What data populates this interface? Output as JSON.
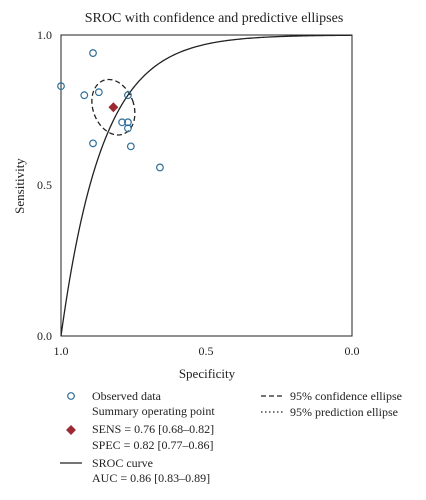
{
  "chart_data": {
    "type": "scatter",
    "title": "SROC with confidence and predictive ellipses",
    "xlabel": "Specificity",
    "ylabel": "Sensitivity",
    "xlim": [
      1.0,
      0.0
    ],
    "ylim": [
      0.0,
      1.0
    ],
    "x_reversed": true,
    "xticks": [
      "1.0",
      "0.5",
      "0.0"
    ],
    "yticks": [
      "0.0",
      "0.5",
      "1.0"
    ],
    "observed": {
      "specificity": [
        1.0,
        0.92,
        0.89,
        0.89,
        0.87,
        0.77,
        0.79,
        0.77,
        0.77,
        0.76,
        0.66
      ],
      "sensitivity": [
        0.83,
        0.8,
        0.94,
        0.64,
        0.81,
        0.8,
        0.71,
        0.71,
        0.69,
        0.63,
        0.56
      ]
    },
    "summary": {
      "specificity": 0.82,
      "sensitivity": 0.76
    },
    "confidence_ellipse": {
      "center": [
        0.82,
        0.76
      ],
      "semi_spec": 0.07,
      "semi_sens": 0.095,
      "rotation_deg": -20
    },
    "sroc_curve_k": 7.0,
    "legend": {
      "observed": "Observed data",
      "summary_title": "Summary operating point",
      "sens": "SENS = 0.76 [0.68–0.82]",
      "spec": "SPEC = 0.82 [0.77–0.86]",
      "sroc": "SROC curve",
      "auc": "AUC = 0.86 [0.83–0.89]",
      "confidence": "95% confidence ellipse",
      "prediction": "95% prediction ellipse"
    },
    "colors": {
      "observed": "#2f6f99",
      "summary": "#9b2a32",
      "line": "#222222"
    }
  }
}
